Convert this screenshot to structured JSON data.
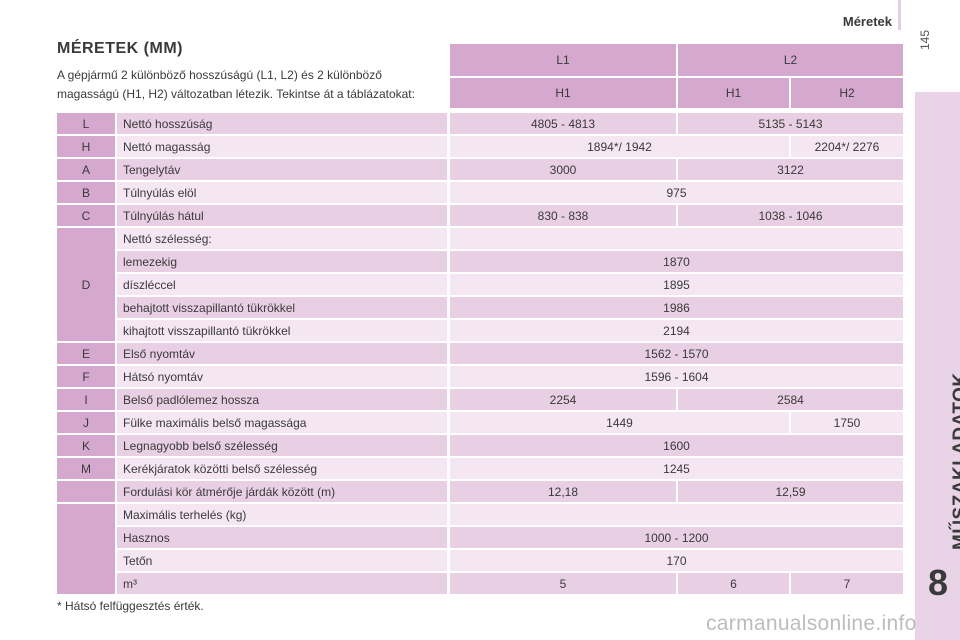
{
  "header": {
    "section": "Méretek",
    "page": "145"
  },
  "side": {
    "chapter_title": "MŰSZAKI ADATOK",
    "chapter_number": "8"
  },
  "title": "MÉRETEK (MM)",
  "intro": "A gépjármű 2 különböző hosszúságú (L1, L2) és 2 különböző magasságú (H1, H2) változatban létezik. Tekintse át a táblázatokat:",
  "columns": {
    "lengths": [
      "L1",
      "L2"
    ],
    "heights": [
      "H1",
      "H1",
      "H2"
    ]
  },
  "rows": [
    {
      "code": "L",
      "label": "Nettó hosszúság",
      "values": [
        "4805 - 4813",
        "5135 - 5143"
      ],
      "split": "A"
    },
    {
      "code": "H",
      "label": "Nettó magasság",
      "values": [
        "1894*/ 1942",
        "2204*/ 2276"
      ],
      "split": "B"
    },
    {
      "code": "A",
      "label": "Tengelytáv",
      "values": [
        "3000",
        "3122"
      ],
      "split": "A"
    },
    {
      "code": "B",
      "label": "Túlnyúlás elöl",
      "values": [
        "975"
      ],
      "split": "F"
    },
    {
      "code": "C",
      "label": "Túlnyúlás hátul",
      "values": [
        "830 - 838",
        "1038 - 1046"
      ],
      "split": "A"
    },
    {
      "code": "",
      "label": "Nettó szélesség:",
      "values": [],
      "split": "E"
    },
    {
      "code": "",
      "label": "lemezekig",
      "values": [
        "1870"
      ],
      "split": "F"
    },
    {
      "code": "D",
      "label": "díszléccel",
      "values": [
        "1895"
      ],
      "split": "F"
    },
    {
      "code": "",
      "label": "behajtott visszapillantó tükrökkel",
      "values": [
        "1986"
      ],
      "split": "F"
    },
    {
      "code": "",
      "label": "kihajtott visszapillantó tükrökkel",
      "values": [
        "2194"
      ],
      "split": "F"
    },
    {
      "code": "E",
      "label": "Első nyomtáv",
      "values": [
        "1562 - 1570"
      ],
      "split": "F"
    },
    {
      "code": "F",
      "label": "Hátsó nyomtáv",
      "values": [
        "1596 - 1604"
      ],
      "split": "F"
    },
    {
      "code": "I",
      "label": "Belső padlólemez hossza",
      "values": [
        "2254",
        "2584"
      ],
      "split": "A"
    },
    {
      "code": "J",
      "label": "Fülke maximális belső magassága",
      "values": [
        "1449",
        "1750"
      ],
      "split": "B"
    },
    {
      "code": "K",
      "label": "Legnagyobb belső szélesség",
      "values": [
        "1600"
      ],
      "split": "F"
    },
    {
      "code": "M",
      "label": "Kerékjáratok közötti belső szélesség",
      "values": [
        "1245"
      ],
      "split": "F"
    },
    {
      "code": "",
      "label": "Fordulási kör átmérője járdák között (m)",
      "values": [
        "12,18",
        "12,59"
      ],
      "split": "A"
    },
    {
      "code": "",
      "label": "Maximális terhelés (kg)",
      "values": [],
      "split": "E"
    },
    {
      "code": "",
      "label": "Hasznos",
      "values": [
        "1000 - 1200"
      ],
      "split": "F"
    },
    {
      "code": "",
      "label": "Tetőn",
      "values": [
        "170"
      ],
      "split": "F"
    },
    {
      "code": "",
      "label": "m³",
      "values": [
        "5",
        "6",
        "7"
      ],
      "split": "T"
    }
  ],
  "footnote": "* Hátsó felfüggesztés érték.",
  "watermark": "carmanualsonline.info",
  "colors": {
    "header": "#d5a9cf",
    "dark_row": "#e8cfe4",
    "light_row": "#f4e6f2",
    "side_tab": "#e9d3e6"
  }
}
